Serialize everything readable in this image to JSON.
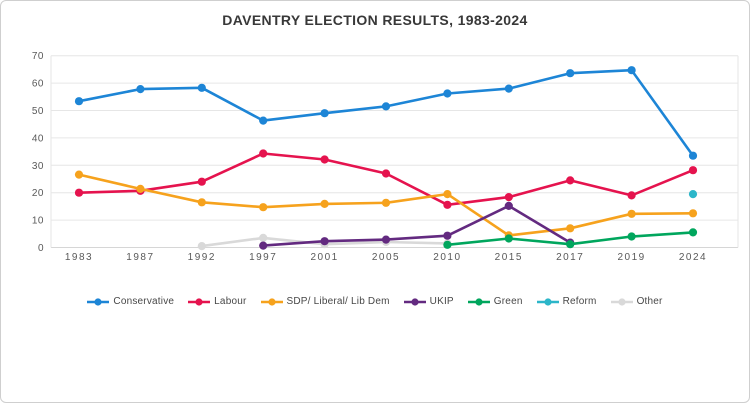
{
  "chart_data": {
    "type": "line",
    "title": "DAVENTRY ELECTION RESULTS, 1983-2024",
    "categories": [
      "1983",
      "1987",
      "1992",
      "1997",
      "2001",
      "2005",
      "2010",
      "2015",
      "2017",
      "2019",
      "2024"
    ],
    "series": [
      {
        "name": "Conservative",
        "color": "#1d85d6",
        "values": [
          53.4,
          57.8,
          58.3,
          46.3,
          49.0,
          51.5,
          56.2,
          58.0,
          63.6,
          64.7,
          33.5
        ]
      },
      {
        "name": "Labour",
        "color": "#e5134e",
        "values": [
          20.0,
          20.7,
          24.0,
          34.3,
          32.1,
          27.0,
          15.6,
          18.4,
          24.5,
          19.0,
          28.2
        ]
      },
      {
        "name": "SDP/ Liberal/ Lib Dem",
        "color": "#f6a21d",
        "values": [
          26.6,
          21.4,
          16.5,
          14.7,
          15.9,
          16.3,
          19.5,
          4.4,
          7.0,
          12.3,
          12.5
        ]
      },
      {
        "name": "UKIP",
        "color": "#632a80",
        "values": [
          null,
          null,
          null,
          0.7,
          2.3,
          2.9,
          4.3,
          15.2,
          1.8,
          null,
          null
        ]
      },
      {
        "name": "Green",
        "color": "#00a65d",
        "values": [
          null,
          null,
          null,
          null,
          null,
          null,
          1.0,
          3.3,
          1.2,
          4.0,
          5.5
        ]
      },
      {
        "name": "Reform",
        "color": "#2cb6c9",
        "values": [
          null,
          null,
          null,
          null,
          null,
          null,
          null,
          null,
          null,
          null,
          19.5
        ]
      },
      {
        "name": "Other",
        "color": "#d9d9d9",
        "values": [
          null,
          null,
          0.5,
          3.5,
          1.2,
          2.0,
          1.5,
          null,
          null,
          null,
          null
        ]
      }
    ],
    "ylim": [
      0,
      70
    ],
    "ytick_step": 10,
    "xlabel": "",
    "ylabel": "",
    "grid": true,
    "legend_position": "bottom"
  },
  "colors": {
    "gridline": "#e6e6e6",
    "axis_line": "#d6d6d6",
    "axis_text": "#595959",
    "title_text": "#383838",
    "card_border": "#cfcfcf",
    "background": "#ffffff"
  }
}
